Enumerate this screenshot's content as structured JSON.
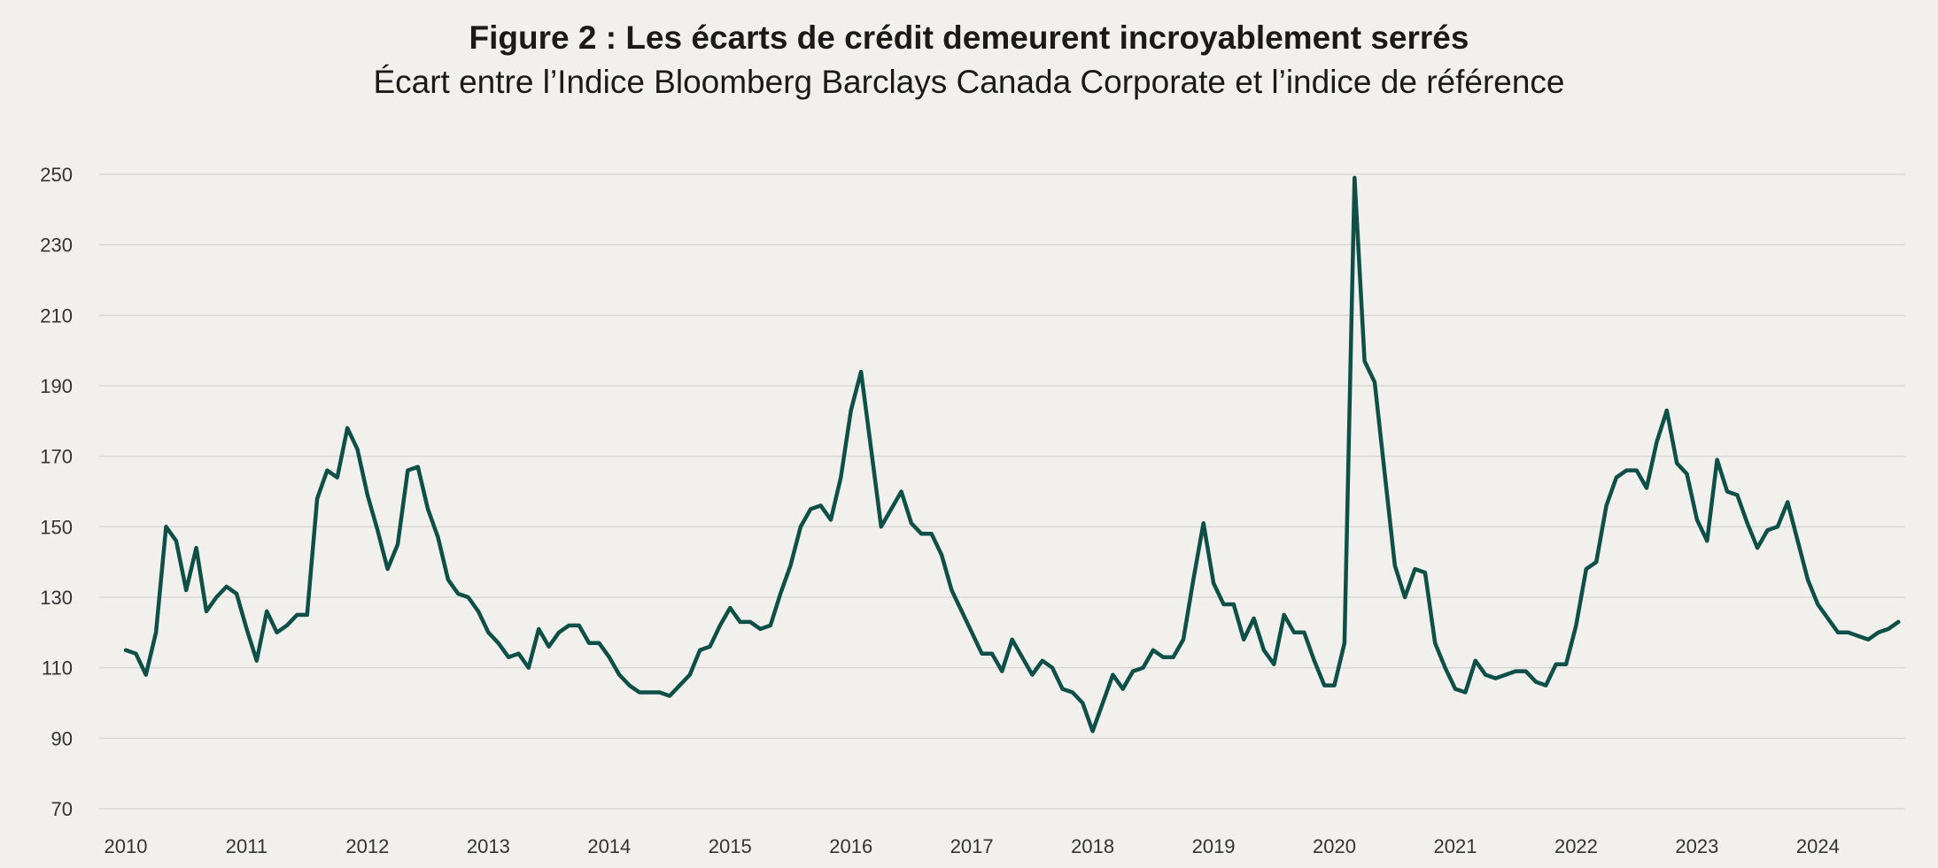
{
  "chart_data": {
    "type": "line",
    "title": "Figure 2 : Les écarts de crédit demeurent incroyablement serrés",
    "subtitle": "Écart entre l’Indice Bloomberg Barclays Canada Corporate et l’indice de référence",
    "xlabel": "",
    "ylabel": "",
    "ylim": [
      70,
      250
    ],
    "yticks": [
      250,
      230,
      210,
      190,
      170,
      150,
      130,
      110,
      90,
      70
    ],
    "xticks": [
      "2010",
      "2011",
      "2012",
      "2013",
      "2014",
      "2015",
      "2016",
      "2017",
      "2018",
      "2019",
      "2020",
      "2021",
      "2022",
      "2023",
      "2024"
    ],
    "grid": true,
    "legend": "none",
    "x_start": "2010-01",
    "x_frequency": "monthly",
    "series": [
      {
        "name": "Écart",
        "color": "#0e4f47",
        "values": [
          115,
          114,
          108,
          120,
          150,
          146,
          132,
          144,
          126,
          130,
          133,
          131,
          121,
          112,
          126,
          120,
          122,
          125,
          125,
          158,
          166,
          164,
          178,
          172,
          159,
          149,
          138,
          145,
          166,
          167,
          155,
          147,
          135,
          131,
          130,
          126,
          120,
          117,
          113,
          114,
          110,
          121,
          116,
          120,
          122,
          122,
          117,
          117,
          113,
          108,
          105,
          103,
          103,
          103,
          102,
          105,
          108,
          115,
          116,
          122,
          127,
          123,
          123,
          121,
          122,
          131,
          139,
          150,
          155,
          156,
          152,
          164,
          183,
          194,
          172,
          150,
          155,
          160,
          151,
          148,
          148,
          142,
          132,
          126,
          120,
          114,
          114,
          109,
          118,
          113,
          108,
          112,
          110,
          104,
          103,
          100,
          92,
          100,
          108,
          104,
          109,
          110,
          115,
          113,
          113,
          118,
          135,
          151,
          134,
          128,
          128,
          118,
          124,
          115,
          111,
          125,
          120,
          120,
          112,
          105,
          105,
          117,
          249,
          197,
          191,
          165,
          139,
          130,
          138,
          137,
          117,
          110,
          104,
          103,
          112,
          108,
          107,
          108,
          109,
          109,
          106,
          105,
          111,
          111,
          122,
          138,
          140,
          156,
          164,
          166,
          166,
          161,
          174,
          183,
          168,
          165,
          152,
          146,
          169,
          160,
          159,
          151,
          144,
          149,
          150,
          157,
          146,
          135,
          128,
          124,
          120,
          120,
          119,
          118,
          120,
          121,
          123
        ]
      }
    ]
  }
}
